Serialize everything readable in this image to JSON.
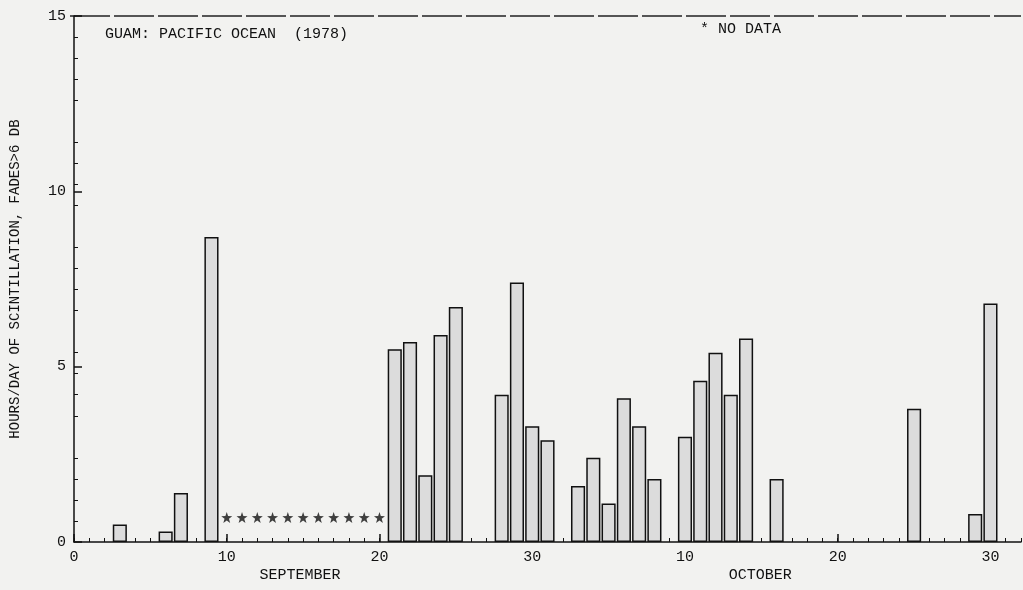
{
  "chart_data": {
    "type": "bar",
    "title": "GUAM: PACIFIC OCEAN  (1978)",
    "ylabel": "HOURS/DAY OF SCINTILLATION, FADES>6 DB",
    "annotations": [
      "* NO DATA",
      "SEPTEMBER",
      "OCTOBER"
    ],
    "xlim": [
      "--08-31",
      "--11-01"
    ],
    "xticks": [
      {
        "value": "--08-31",
        "label": "0"
      },
      {
        "value": "--09-10",
        "label": "10"
      },
      {
        "value": "--09-20",
        "label": "20"
      },
      {
        "value": "--09-30",
        "label": "30"
      },
      {
        "value": "--10-10",
        "label": "10"
      },
      {
        "value": "--10-20",
        "label": "20"
      },
      {
        "value": "--10-30",
        "label": "30"
      }
    ],
    "ylim": [
      0,
      15
    ],
    "yticks": [
      0,
      5,
      10,
      15
    ],
    "grid": false,
    "series": [
      {
        "color": "#dcdcdc",
        "x": [
          "--09-03",
          "--09-06",
          "--09-07",
          "--09-09",
          "--09-21",
          "--09-22",
          "--09-23",
          "--09-24",
          "--09-25",
          "--09-28",
          "--09-29",
          "--09-30",
          "--10-01",
          "--10-03",
          "--10-04",
          "--10-05",
          "--10-06",
          "--10-07",
          "--10-08",
          "--10-10",
          "--10-11",
          "--10-12",
          "--10-13",
          "--10-14",
          "--10-16",
          "--10-25",
          "--10-29",
          "--10-30"
        ],
        "values": [
          0.5,
          0.3,
          1.4,
          8.7,
          5.5,
          5.7,
          1.9,
          5.9,
          6.7,
          4.2,
          7.4,
          3.3,
          2.9,
          1.6,
          2.4,
          1.1,
          4.1,
          3.3,
          1.8,
          3.0,
          4.6,
          5.4,
          4.2,
          5.8,
          1.8,
          3.8,
          0.8,
          6.8
        ]
      },
      {
        "type": "scatter",
        "marker": "star",
        "color": "#111111",
        "x": [
          "--09-10",
          "--09-11",
          "--09-12",
          "--09-13",
          "--09-14",
          "--09-15",
          "--09-16",
          "--09-17",
          "--09-18",
          "--09-19",
          "--09-20"
        ],
        "values": [
          0.7,
          0.7,
          0.7,
          0.7,
          0.7,
          0.7,
          0.7,
          0.7,
          0.7,
          0.7,
          0.7
        ]
      }
    ]
  }
}
